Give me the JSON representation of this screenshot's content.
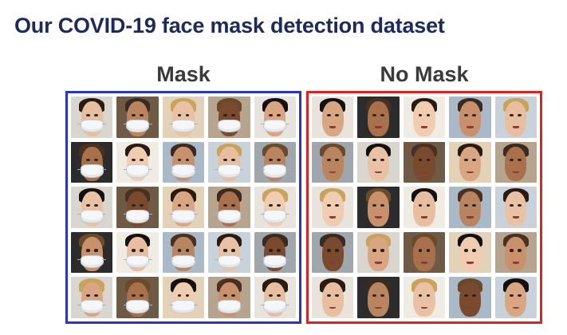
{
  "slide": {
    "title": "Our COVID-19 face mask detection dataset"
  },
  "panels": {
    "mask": {
      "label": "Mask",
      "border_color": "#2a35c8"
    },
    "no_mask": {
      "label": "No Mask",
      "border_color": "#e0221e"
    }
  },
  "image_grid": {
    "rows": 5,
    "columns": 5
  },
  "palette": {
    "skin": [
      "#e7bfa0",
      "#c9916b",
      "#f0ccb0",
      "#a8704b",
      "#d8a682",
      "#7a4a2e",
      "#e9c2a6",
      "#b98460"
    ],
    "hair": [
      "#2a1b12",
      "#4a3020",
      "#141010",
      "#6b4a2b",
      "#c9a35c",
      "#3b2a20"
    ],
    "backgrounds": [
      "#d9d6cf",
      "#a9b9c8",
      "#e8e3dc",
      "#6f5a45",
      "#c9d2da",
      "#2c2c2c",
      "#e4d2b8",
      "#9fa7ad",
      "#f0ebe3",
      "#b7a48e"
    ]
  }
}
